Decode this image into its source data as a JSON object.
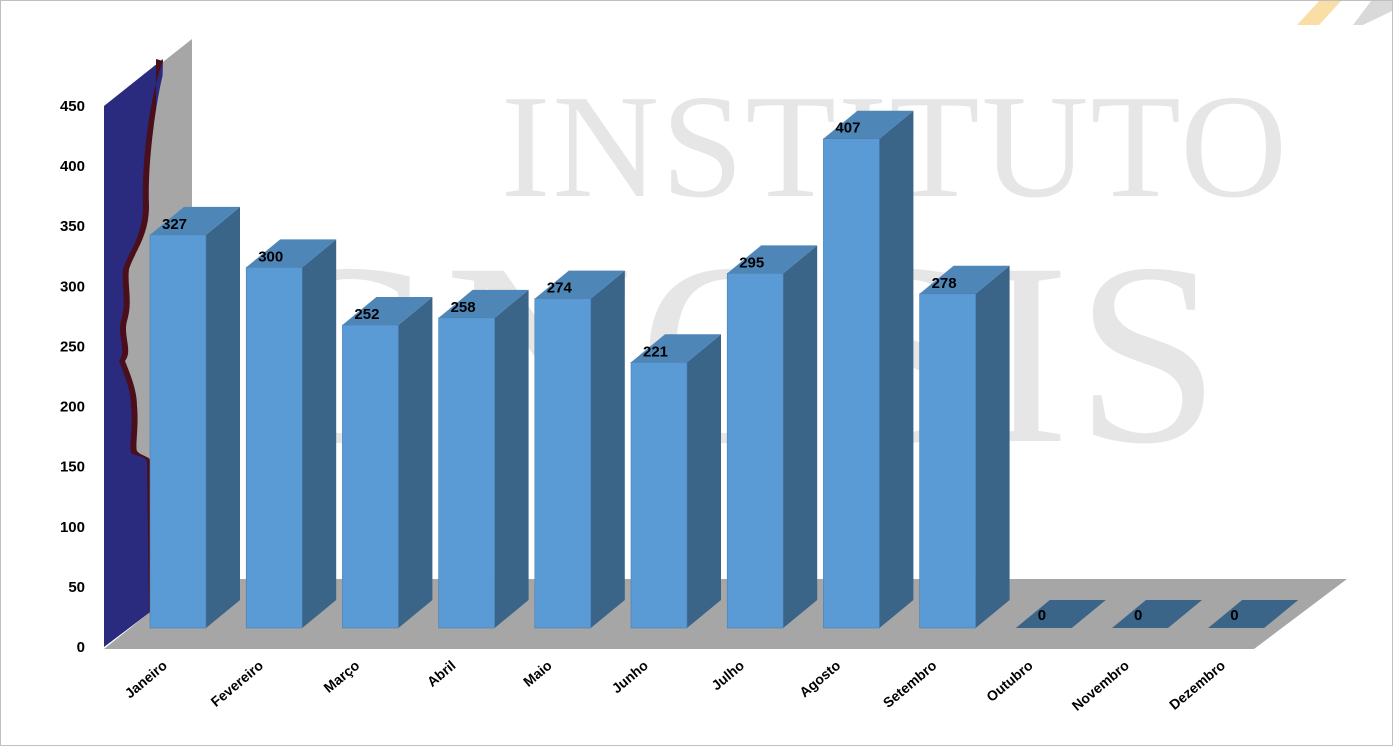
{
  "watermark": {
    "line1": "INSTITUTO",
    "line2": "GNOSIS"
  },
  "colors": {
    "bar_front": "#5b9bd5",
    "bar_side": "#3a6488",
    "bar_top": "#4f86b8",
    "floor": "#a6a6a6",
    "back_wall": "#a6a6a6",
    "side_wall": "#2a2a7e",
    "profile_edge": "#4a0f1a",
    "accent_stripe": "#f5c96a"
  },
  "chart_data": {
    "type": "bar",
    "three_d": true,
    "title": "",
    "xlabel": "",
    "ylabel": "",
    "categories": [
      "Janeiro",
      "Fevereiro",
      "Março",
      "Abril",
      "Maio",
      "Junho",
      "Julho",
      "Agosto",
      "Setembro",
      "Outubro",
      "Novembro",
      "Dezembro"
    ],
    "values": [
      327,
      300,
      252,
      258,
      274,
      221,
      295,
      407,
      278,
      0,
      0,
      0
    ],
    "data_labels": [
      "327",
      "300",
      "252",
      "258",
      "274",
      "221",
      "295",
      "407",
      "278",
      "0",
      "0",
      "0"
    ],
    "ylim": [
      0,
      450
    ],
    "y_ticks": [
      "0",
      "50",
      "100",
      "150",
      "200",
      "250",
      "300",
      "350",
      "400",
      "450"
    ],
    "grid": false,
    "legend": "none"
  }
}
